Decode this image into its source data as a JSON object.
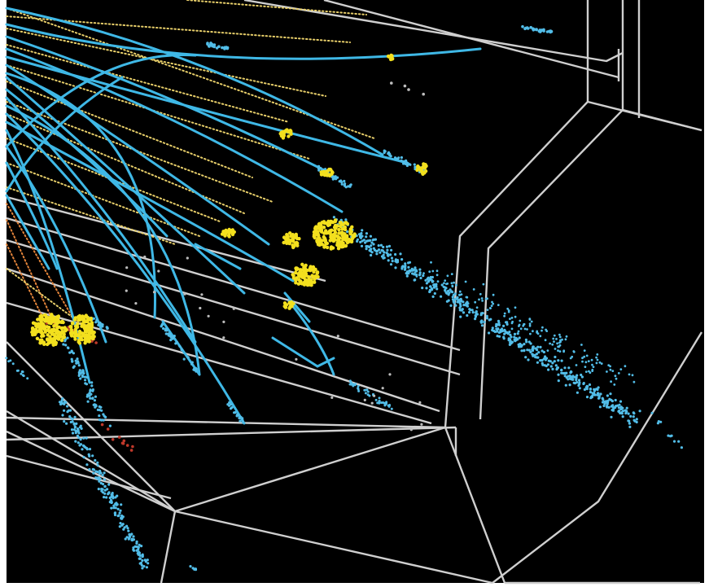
{
  "scene": {
    "background_color": "#000000",
    "frame_color": "#ffffff",
    "detector_line_color": "#cfcfcf",
    "track_color": "#3fb8e6",
    "dotted_track_color": "#e8cf6a",
    "dotted_track_alt_color": "#e3843a",
    "hit_cluster_color": "#f3e01e",
    "blue_hit_color": "#52bde8",
    "red_hit_color": "#c0392b",
    "grey_hit_color": "#bdbdbd"
  }
}
